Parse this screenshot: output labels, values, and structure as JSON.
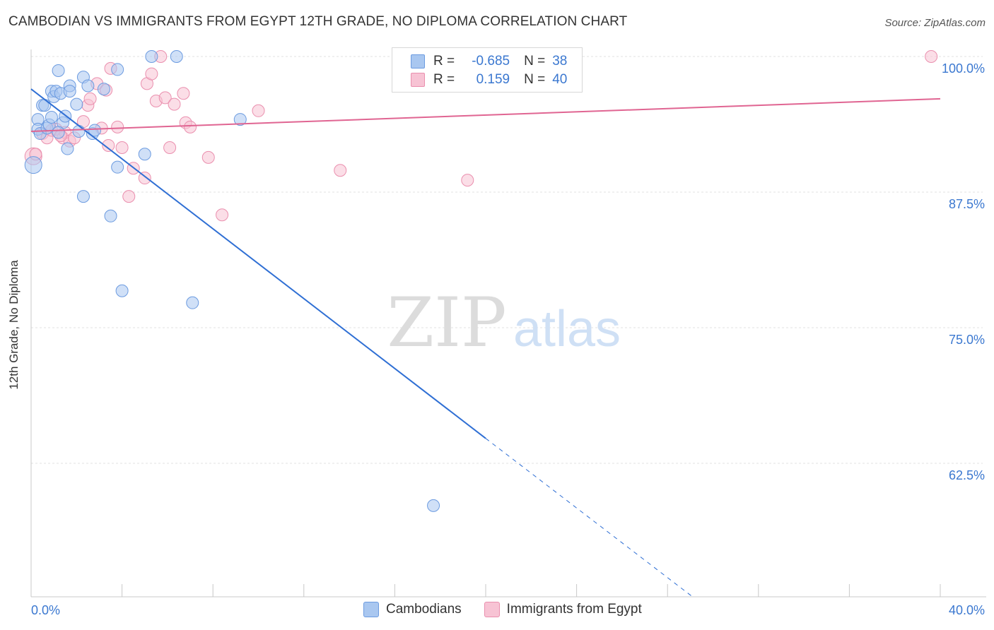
{
  "title": "CAMBODIAN VS IMMIGRANTS FROM EGYPT 12TH GRADE, NO DIPLOMA CORRELATION CHART",
  "source": "Source: ZipAtlas.com",
  "watermark": {
    "zip": "ZIP",
    "atlas": "atlas"
  },
  "legend": {
    "rows": [
      {
        "r_label": "R =",
        "r_value": "-0.685",
        "n_label": "N =",
        "n_value": "38",
        "color": "#a9c7f0",
        "border": "#6c9be0"
      },
      {
        "r_label": "R =",
        "r_value": "0.159",
        "n_label": "N =",
        "n_value": "40",
        "color": "#f7c3d4",
        "border": "#ea8fae"
      }
    ]
  },
  "bottom_legend": [
    "Cambodians",
    "Immigrants from Egypt"
  ],
  "colors": {
    "blue_fill": "#a9c7f0",
    "blue_stroke": "#6c9be0",
    "blue_line": "#2f6fd4",
    "pink_fill": "#f7c3d4",
    "pink_stroke": "#ea8fae",
    "pink_line": "#e06592",
    "tick_label": "#3b78d0",
    "grid": "#e2e2e2"
  },
  "chart_data": {
    "type": "scatter",
    "title": "CAMBODIAN VS IMMIGRANTS FROM EGYPT 12TH GRADE, NO DIPLOMA CORRELATION CHART",
    "xlabel": "",
    "ylabel": "12th Grade, No Diploma",
    "xlim": [
      0,
      40
    ],
    "ylim": [
      50,
      101
    ],
    "x_ticks": [
      {
        "v": 0,
        "label": "0.0%"
      },
      {
        "v": 40,
        "label": "40.0%"
      }
    ],
    "y_ticks": [
      {
        "v": 100,
        "label": "100.0%"
      },
      {
        "v": 87.5,
        "label": "87.5%"
      },
      {
        "v": 75,
        "label": "75.0%"
      },
      {
        "v": 62.5,
        "label": "62.5%"
      }
    ],
    "series": [
      {
        "name": "Cambodians",
        "points": [
          [
            0.1,
            90.0
          ],
          [
            0.3,
            94.2
          ],
          [
            0.3,
            93.3
          ],
          [
            0.4,
            92.9
          ],
          [
            0.5,
            95.5
          ],
          [
            0.6,
            95.5
          ],
          [
            0.7,
            93.4
          ],
          [
            0.8,
            93.7
          ],
          [
            0.9,
            94.4
          ],
          [
            0.9,
            96.8
          ],
          [
            1.0,
            96.3
          ],
          [
            1.1,
            96.8
          ],
          [
            1.2,
            98.7
          ],
          [
            1.3,
            96.6
          ],
          [
            1.4,
            93.9
          ],
          [
            1.5,
            94.5
          ],
          [
            1.6,
            91.5
          ],
          [
            1.7,
            97.3
          ],
          [
            1.7,
            96.8
          ],
          [
            2.0,
            95.6
          ],
          [
            2.1,
            93.1
          ],
          [
            2.3,
            98.1
          ],
          [
            2.5,
            97.3
          ],
          [
            2.7,
            92.9
          ],
          [
            2.8,
            93.2
          ],
          [
            3.2,
            97.0
          ],
          [
            3.5,
            85.3
          ],
          [
            3.8,
            89.8
          ],
          [
            3.8,
            98.8
          ],
          [
            4.0,
            78.4
          ],
          [
            5.0,
            91.0
          ],
          [
            5.3,
            100.0
          ],
          [
            6.4,
            100.0
          ],
          [
            7.1,
            77.3
          ],
          [
            9.2,
            94.2
          ],
          [
            17.7,
            58.6
          ],
          [
            2.3,
            87.1
          ],
          [
            1.2,
            93.0
          ]
        ],
        "trend": {
          "x0": 0,
          "y0": 97.0,
          "x1": 20.0,
          "y1": 64.8,
          "dash_to_x": 29.1,
          "dash_to_y": 50.2
        }
      },
      {
        "name": "Immigrants from Egypt",
        "points": [
          [
            0.1,
            90.8
          ],
          [
            0.5,
            92.9
          ],
          [
            0.7,
            92.5
          ],
          [
            0.9,
            93.2
          ],
          [
            1.1,
            93.3
          ],
          [
            1.4,
            92.5
          ],
          [
            1.5,
            93.0
          ],
          [
            1.7,
            92.2
          ],
          [
            1.9,
            92.5
          ],
          [
            2.3,
            94.0
          ],
          [
            2.5,
            95.5
          ],
          [
            2.6,
            96.1
          ],
          [
            2.9,
            97.5
          ],
          [
            3.1,
            93.4
          ],
          [
            3.3,
            96.9
          ],
          [
            3.4,
            91.8
          ],
          [
            3.5,
            98.9
          ],
          [
            3.8,
            93.5
          ],
          [
            4.0,
            91.6
          ],
          [
            4.3,
            87.1
          ],
          [
            4.5,
            89.7
          ],
          [
            5.0,
            88.8
          ],
          [
            5.1,
            97.5
          ],
          [
            5.3,
            98.4
          ],
          [
            5.5,
            95.9
          ],
          [
            5.7,
            100.0
          ],
          [
            5.9,
            96.2
          ],
          [
            6.1,
            91.6
          ],
          [
            6.3,
            95.6
          ],
          [
            6.7,
            96.6
          ],
          [
            6.8,
            93.9
          ],
          [
            7.0,
            93.5
          ],
          [
            7.8,
            90.7
          ],
          [
            8.4,
            85.4
          ],
          [
            10.0,
            95.0
          ],
          [
            13.6,
            89.5
          ],
          [
            19.2,
            88.6
          ],
          [
            39.6,
            100.0
          ],
          [
            1.3,
            92.7
          ],
          [
            0.2,
            91.0
          ]
        ],
        "trend": {
          "x0": 0,
          "y0": 93.1,
          "x1": 40.0,
          "y1": 96.1
        }
      }
    ],
    "grid": true,
    "legend_position": "top-center"
  }
}
